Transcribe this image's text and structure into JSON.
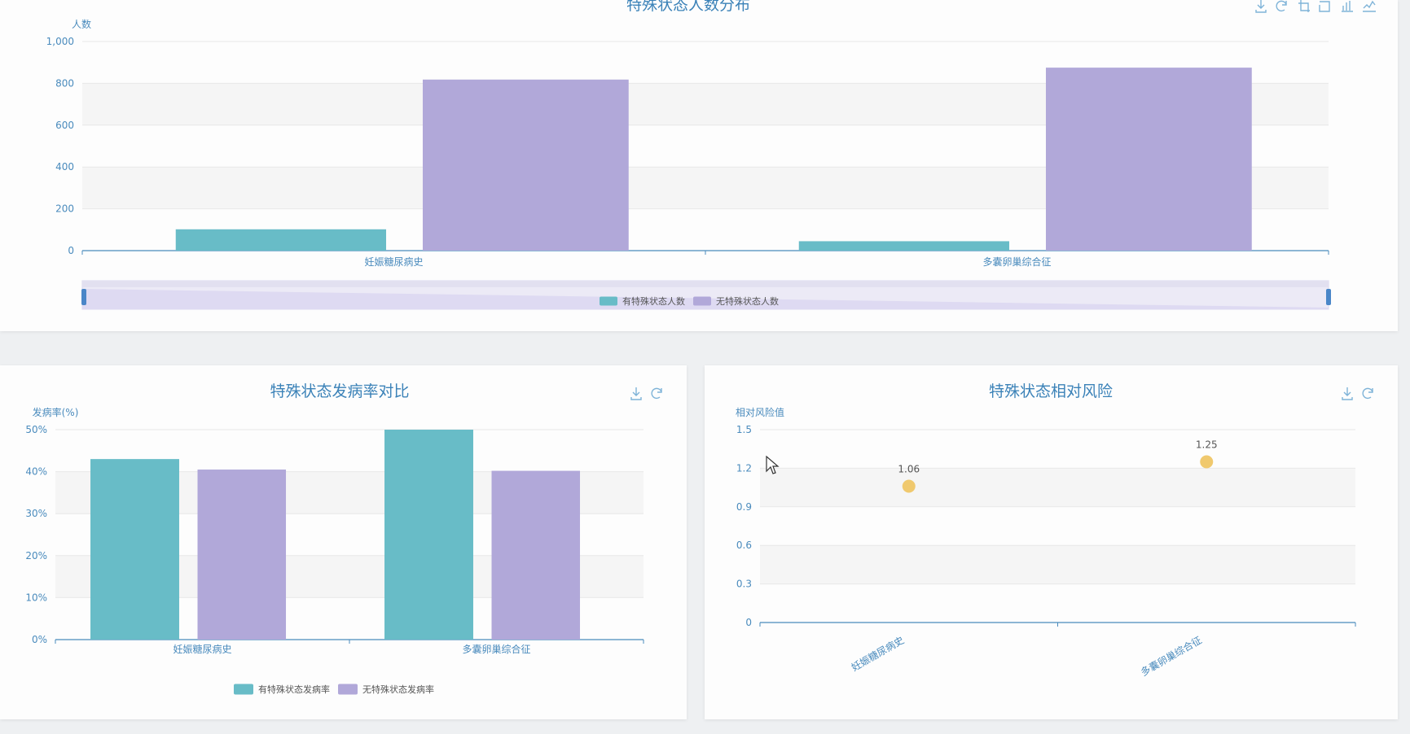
{
  "colors": {
    "teal": "#68bcc7",
    "purple": "#b1a8d9",
    "gold": "#f0c96e",
    "axis": "#4a8bbd",
    "grid": "#e8e8e8",
    "band": "#f5f5f5"
  },
  "top_chart": {
    "title": "特殊状态人数分布",
    "toolbox_icons": [
      "download-icon",
      "refresh-icon",
      "zoom-icon",
      "zoom-reset-icon",
      "bar-icon",
      "line-icon"
    ]
  },
  "left_chart": {
    "title": "特殊状态发病率对比",
    "toolbox_icons": [
      "download-icon",
      "refresh-icon"
    ]
  },
  "right_chart": {
    "title": "特殊状态相对风险",
    "toolbox_icons": [
      "download-icon",
      "refresh-icon"
    ]
  },
  "chart_data": [
    {
      "type": "bar",
      "title": "特殊状态人数分布",
      "ylabel": "人数",
      "categories": [
        "妊娠糖尿病史",
        "多囊卵巢综合征"
      ],
      "series": [
        {
          "name": "有特殊状态人数",
          "values": [
            102,
            45
          ],
          "color": "#68bcc7"
        },
        {
          "name": "无特殊状态人数",
          "values": [
            818,
            875
          ],
          "color": "#b1a8d9"
        }
      ],
      "ylim": [
        0,
        1000
      ],
      "yticks": [
        "0",
        "200",
        "400",
        "600",
        "800",
        "1,000"
      ],
      "grid": true,
      "legend": "bottom",
      "datazoom": true
    },
    {
      "type": "bar",
      "title": "特殊状态发病率对比",
      "ylabel": "发病率(%)",
      "categories": [
        "妊娠糖尿病史",
        "多囊卵巢综合征"
      ],
      "series": [
        {
          "name": "有特殊状态发病率",
          "values": [
            43,
            50
          ],
          "color": "#68bcc7"
        },
        {
          "name": "无特殊状态发病率",
          "values": [
            40.5,
            40.2
          ],
          "color": "#b1a8d9"
        }
      ],
      "ylim": [
        0,
        50
      ],
      "yticks": [
        "0%",
        "10%",
        "20%",
        "30%",
        "40%",
        "50%"
      ],
      "grid": true,
      "legend": "bottom"
    },
    {
      "type": "scatter",
      "title": "特殊状态相对风险",
      "ylabel": "相对风险值",
      "categories": [
        "妊娠糖尿病史",
        "多囊卵巢综合征"
      ],
      "series": [
        {
          "values": [
            1.06,
            1.25
          ],
          "labels": [
            "1.06",
            "1.25"
          ],
          "color": "#f0c96e"
        }
      ],
      "ylim": [
        0,
        1.5
      ],
      "yticks": [
        "0",
        "0.3",
        "0.6",
        "0.9",
        "1.2",
        "1.5"
      ],
      "grid": true
    }
  ]
}
